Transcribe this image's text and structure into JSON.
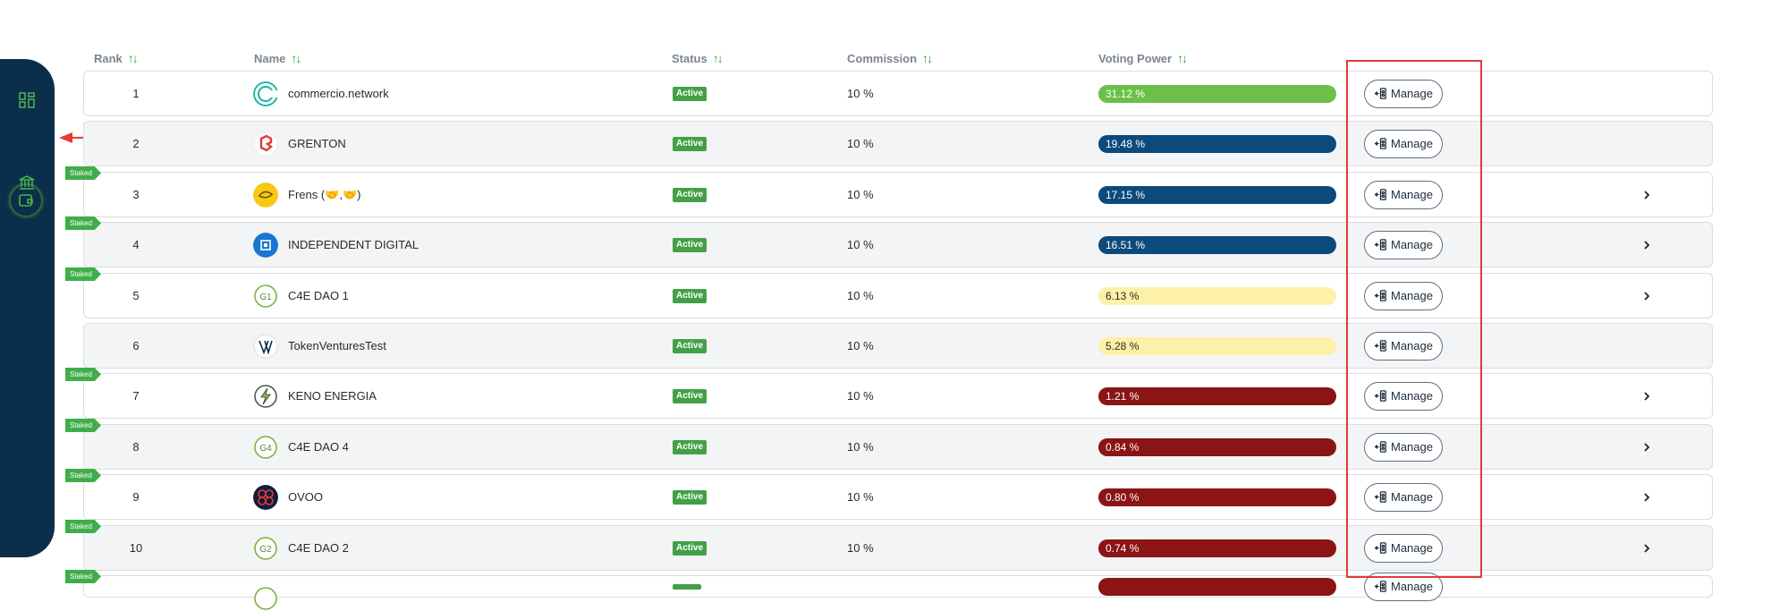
{
  "sidebar": {
    "icons": [
      "dashboard-grid-icon",
      "wallet-icon",
      "bank-icon"
    ],
    "active_index": 1
  },
  "header": {
    "rank": "Rank",
    "name": "Name",
    "status": "Status",
    "commission": "Commission",
    "voting_power": "Voting Power",
    "sort_glyph": "↑↓"
  },
  "manage_label": "Manage",
  "staked_label": "Staked",
  "colors": {
    "sidebar": "#0b2e4a",
    "active_badge": "#43a047",
    "vp_green": "#6cc04a",
    "vp_blue": "#0c4a7c",
    "vp_yellow": "#fdf0a8",
    "vp_red": "#8b1414",
    "annotation_red": "#e53935"
  },
  "rows": [
    {
      "rank": "1",
      "name": "commercio.network",
      "status": "Active",
      "commission": "10 %",
      "voting_power": "31.12 %",
      "vp_color": "green",
      "staked": false,
      "chevron": false,
      "logo": "commercio-logo-icon"
    },
    {
      "rank": "2",
      "name": "GRENTON",
      "status": "Active",
      "commission": "10 %",
      "voting_power": "19.48 %",
      "vp_color": "blue",
      "staked": false,
      "chevron": false,
      "logo": "grenton-logo-icon"
    },
    {
      "rank": "3",
      "name": "Frens (🤝,🤝)",
      "status": "Active",
      "commission": "10 %",
      "voting_power": "17.15 %",
      "vp_color": "blue",
      "staked": true,
      "chevron": true,
      "logo": "frens-logo-icon"
    },
    {
      "rank": "4",
      "name": "INDEPENDENT DIGITAL",
      "status": "Active",
      "commission": "10 %",
      "voting_power": "16.51 %",
      "vp_color": "blue",
      "staked": true,
      "chevron": true,
      "logo": "independent-digital-logo-icon"
    },
    {
      "rank": "5",
      "name": "C4E DAO 1",
      "status": "Active",
      "commission": "10 %",
      "voting_power": "6.13 %",
      "vp_color": "yellow",
      "staked": true,
      "chevron": true,
      "logo": "c4e-dao-1-logo-icon"
    },
    {
      "rank": "6",
      "name": "TokenVenturesTest",
      "status": "Active",
      "commission": "10 %",
      "voting_power": "5.28 %",
      "vp_color": "yellow",
      "staked": false,
      "chevron": false,
      "logo": "tokenventures-logo-icon"
    },
    {
      "rank": "7",
      "name": "KENO ENERGIA",
      "status": "Active",
      "commission": "10 %",
      "voting_power": "1.21 %",
      "vp_color": "red",
      "staked": true,
      "chevron": true,
      "logo": "keno-energia-logo-icon"
    },
    {
      "rank": "8",
      "name": "C4E DAO 4",
      "status": "Active",
      "commission": "10 %",
      "voting_power": "0.84 %",
      "vp_color": "red",
      "staked": true,
      "chevron": true,
      "logo": "c4e-dao-4-logo-icon"
    },
    {
      "rank": "9",
      "name": "OVOO",
      "status": "Active",
      "commission": "10 %",
      "voting_power": "0.80 %",
      "vp_color": "red",
      "staked": true,
      "chevron": true,
      "logo": "ovoo-logo-icon"
    },
    {
      "rank": "10",
      "name": "C4E DAO 2",
      "status": "Active",
      "commission": "10 %",
      "voting_power": "0.74 %",
      "vp_color": "red",
      "staked": true,
      "chevron": true,
      "logo": "c4e-dao-2-logo-icon"
    },
    {
      "rank": "",
      "name": "",
      "status": "",
      "commission": "",
      "voting_power": "",
      "vp_color": "red",
      "staked": true,
      "chevron": false,
      "logo": "c4e-dao-logo-icon",
      "partial": true
    }
  ]
}
